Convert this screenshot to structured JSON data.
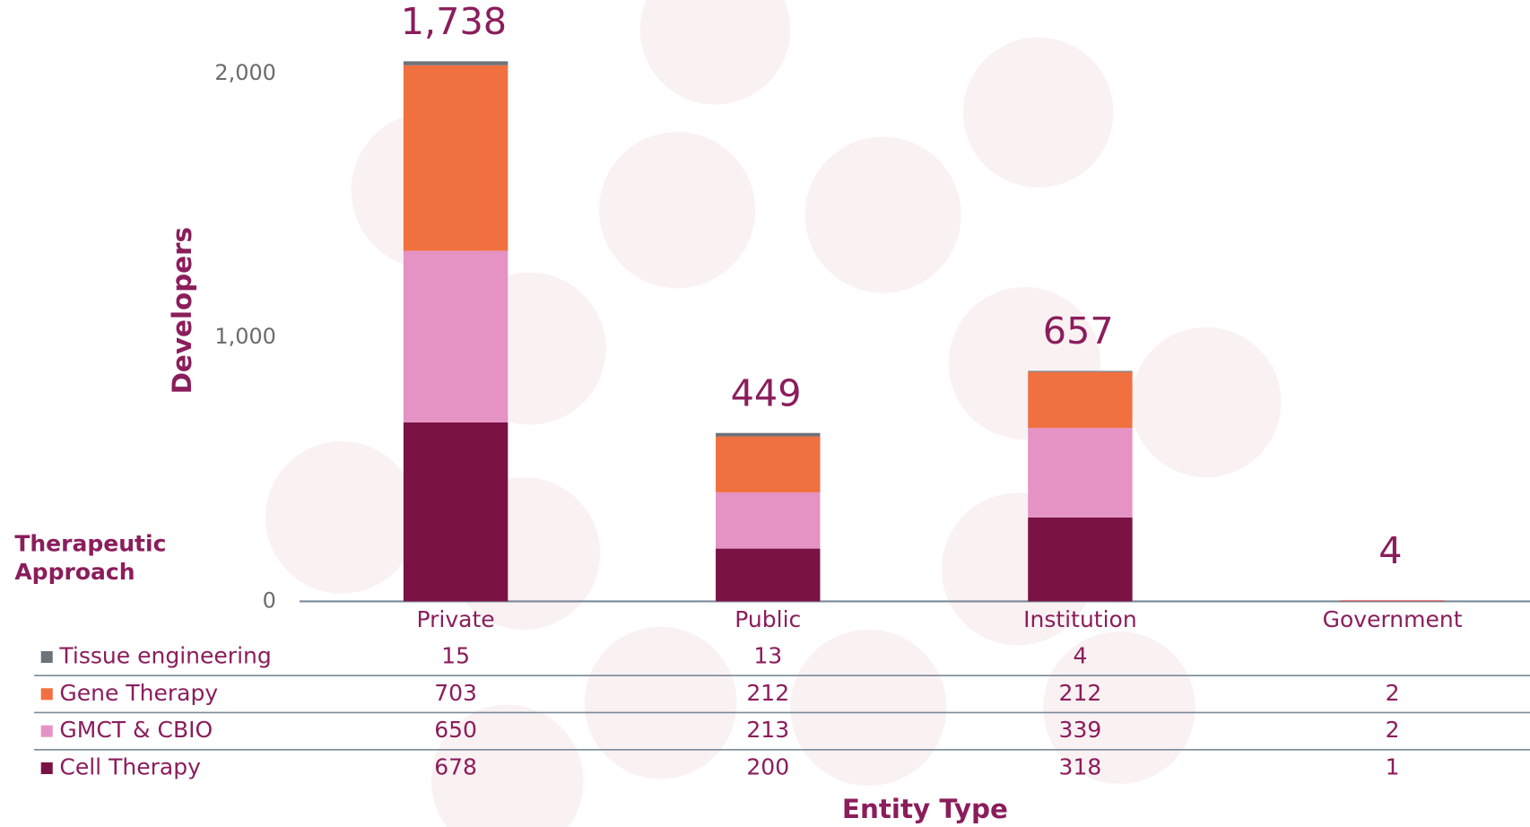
{
  "chart_data": {
    "type": "stacked_bar",
    "y_label": "Developers",
    "x_label": "Entity Type",
    "legend_title": "Therapeutic Approach",
    "categories": [
      "Private",
      "Public",
      "Institution",
      "Government"
    ],
    "series": [
      {
        "name": "Cell Therapy",
        "color": "#7a1343",
        "values": [
          678,
          200,
          318,
          1
        ]
      },
      {
        "name": "GMCT & CBIO",
        "color": "#e593c5",
        "values": [
          650,
          213,
          339,
          2
        ]
      },
      {
        "name": "Gene Therapy",
        "color": "#f07040",
        "values": [
          703,
          212,
          212,
          2
        ]
      },
      {
        "name": "Tissue engineering",
        "color": "#6d737a",
        "values": [
          15,
          13,
          4,
          null
        ]
      }
    ],
    "totals": {
      "values": [
        1738,
        449,
        657,
        4
      ],
      "value_labels": [
        "1,738",
        "449",
        "657",
        "4"
      ]
    },
    "ylim": [
      0,
      2100
    ],
    "yticks": [
      0,
      {
        "value": 1000,
        "label": "1,000"
      },
      {
        "value": 2000,
        "label": "2,000"
      }
    ]
  }
}
